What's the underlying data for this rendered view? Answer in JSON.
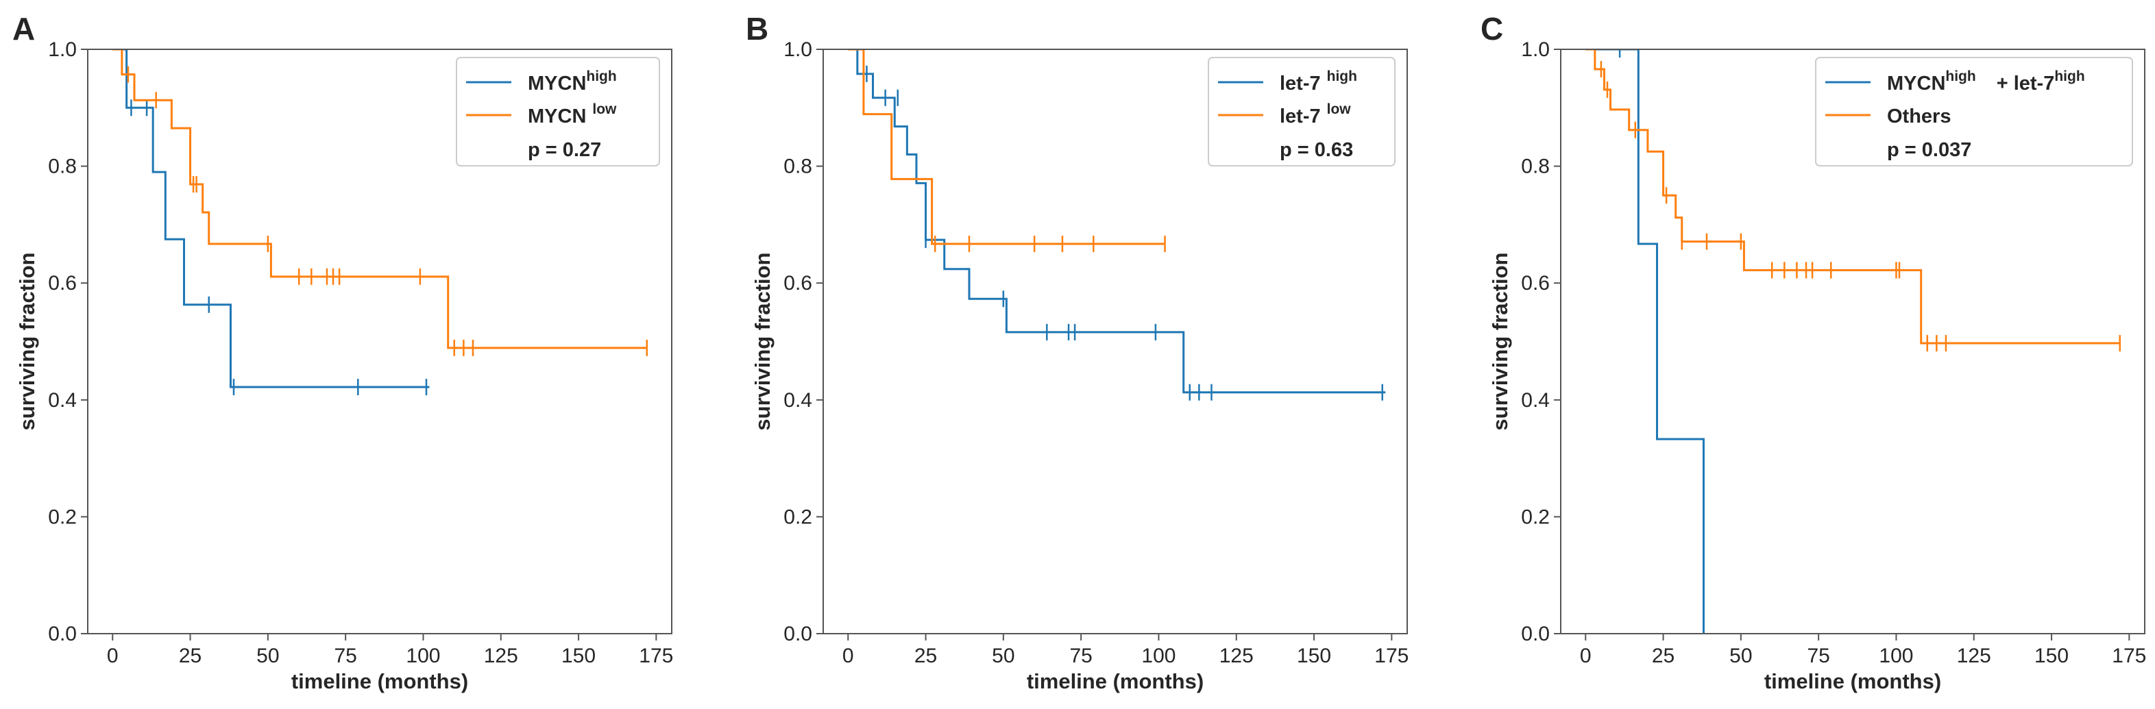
{
  "chart_data": [
    {
      "type": "line",
      "panel_label": "A",
      "xlabel": "timeline (months)",
      "ylabel": "surviving fraction",
      "xlim": [
        -8,
        180
      ],
      "ylim": [
        0,
        1
      ],
      "xticks": [
        0,
        25,
        50,
        75,
        100,
        125,
        150,
        175
      ],
      "yticks": [
        0.0,
        0.2,
        0.4,
        0.6,
        0.8,
        1.0
      ],
      "legend_position": "upper-right",
      "legend": {
        "entries": [
          {
            "base": "MYCN",
            "sup": "high",
            "after": "",
            "after_sup": "",
            "sup_gap": false
          },
          {
            "base": "MYCN",
            "sup": "low",
            "after": "",
            "after_sup": "",
            "sup_gap": true
          }
        ],
        "pvalue": "p = 0.27"
      },
      "series": [
        {
          "name": "MYCN high",
          "color": "#1f77b4",
          "steps": [
            [
              0,
              1.0
            ],
            [
              4.5,
              0.9
            ],
            [
              13,
              0.79
            ],
            [
              17,
              0.675
            ],
            [
              23,
              0.563
            ],
            [
              38,
              0.422
            ],
            [
              102,
              0.422
            ]
          ],
          "censored": [
            [
              6,
              0.9
            ],
            [
              11,
              0.9
            ],
            [
              31,
              0.563
            ],
            [
              39,
              0.422
            ],
            [
              79,
              0.422
            ],
            [
              101,
              0.422
            ]
          ]
        },
        {
          "name": "MYCN low",
          "color": "#ff7f0e",
          "steps": [
            [
              0,
              1.0
            ],
            [
              3,
              0.957
            ],
            [
              7,
              0.913
            ],
            [
              19,
              0.865
            ],
            [
              25,
              0.769
            ],
            [
              29,
              0.721
            ],
            [
              31,
              0.667
            ],
            [
              51,
              0.611
            ],
            [
              108,
              0.489
            ],
            [
              172,
              0.489
            ]
          ],
          "censored": [
            [
              5,
              0.957
            ],
            [
              14,
              0.913
            ],
            [
              26,
              0.769
            ],
            [
              27,
              0.769
            ],
            [
              50,
              0.667
            ],
            [
              60,
              0.611
            ],
            [
              64,
              0.611
            ],
            [
              69,
              0.611
            ],
            [
              71,
              0.611
            ],
            [
              73,
              0.611
            ],
            [
              99,
              0.611
            ],
            [
              110,
              0.489
            ],
            [
              113,
              0.489
            ],
            [
              116,
              0.489
            ],
            [
              172,
              0.489
            ]
          ]
        }
      ]
    },
    {
      "type": "line",
      "panel_label": "B",
      "xlabel": "timeline (months)",
      "ylabel": "surviving fraction",
      "xlim": [
        -8,
        180
      ],
      "ylim": [
        0,
        1
      ],
      "xticks": [
        0,
        25,
        50,
        75,
        100,
        125,
        150,
        175
      ],
      "yticks": [
        0.0,
        0.2,
        0.4,
        0.6,
        0.8,
        1.0
      ],
      "legend_position": "upper-right",
      "legend": {
        "entries": [
          {
            "base": "let-7",
            "sup": "high",
            "after": "",
            "after_sup": "",
            "sup_gap": true
          },
          {
            "base": "let-7",
            "sup": "low",
            "after": "",
            "after_sup": "",
            "sup_gap": true
          }
        ],
        "pvalue": "p = 0.63"
      },
      "series": [
        {
          "name": "let-7 high",
          "color": "#1f77b4",
          "steps": [
            [
              0,
              1.0
            ],
            [
              3,
              0.958
            ],
            [
              8,
              0.917
            ],
            [
              15,
              0.868
            ],
            [
              19,
              0.82
            ],
            [
              22,
              0.771
            ],
            [
              25,
              0.674
            ],
            [
              31,
              0.624
            ],
            [
              39,
              0.573
            ],
            [
              51,
              0.516
            ],
            [
              108,
              0.413
            ],
            [
              173,
              0.413
            ]
          ],
          "censored": [
            [
              6,
              0.958
            ],
            [
              12,
              0.917
            ],
            [
              16,
              0.917
            ],
            [
              25,
              0.674
            ],
            [
              50,
              0.573
            ],
            [
              64,
              0.516
            ],
            [
              71,
              0.516
            ],
            [
              73,
              0.516
            ],
            [
              99,
              0.516
            ],
            [
              110,
              0.413
            ],
            [
              113,
              0.413
            ],
            [
              117,
              0.413
            ],
            [
              172,
              0.413
            ]
          ]
        },
        {
          "name": "let-7 low",
          "color": "#ff7f0e",
          "steps": [
            [
              0,
              1.0
            ],
            [
              5,
              0.889
            ],
            [
              14,
              0.778
            ],
            [
              27,
              0.667
            ],
            [
              102,
              0.667
            ]
          ],
          "censored": [
            [
              5,
              0.958
            ],
            [
              28,
              0.667
            ],
            [
              39,
              0.667
            ],
            [
              60,
              0.667
            ],
            [
              69,
              0.667
            ],
            [
              79,
              0.667
            ],
            [
              102,
              0.667
            ]
          ]
        }
      ]
    },
    {
      "type": "line",
      "panel_label": "C",
      "xlabel": "timeline (months)",
      "ylabel": "surviving fraction",
      "xlim": [
        -8,
        180
      ],
      "ylim": [
        0,
        1
      ],
      "xticks": [
        0,
        25,
        50,
        75,
        100,
        125,
        150,
        175
      ],
      "yticks": [
        0.0,
        0.2,
        0.4,
        0.6,
        0.8,
        1.0
      ],
      "legend_position": "upper-right",
      "legend": {
        "entries": [
          {
            "base": "MYCN",
            "sup": "high",
            "after": "+ let-7",
            "after_sup": "high",
            "sup_gap": false
          },
          {
            "base": "Others",
            "sup": "",
            "after": "",
            "after_sup": "",
            "sup_gap": false
          }
        ],
        "pvalue": "p = 0.037"
      },
      "series": [
        {
          "name": "MYCN high + let-7 high",
          "color": "#1f77b4",
          "steps": [
            [
              0,
              1.0
            ],
            [
              17,
              0.667
            ],
            [
              23,
              0.333
            ],
            [
              38,
              0.0
            ]
          ],
          "censored": [
            [
              11,
              1.0
            ]
          ]
        },
        {
          "name": "Others",
          "color": "#ff7f0e",
          "steps": [
            [
              0,
              1.0
            ],
            [
              3,
              0.966
            ],
            [
              6,
              0.931
            ],
            [
              8,
              0.897
            ],
            [
              14,
              0.862
            ],
            [
              20,
              0.825
            ],
            [
              25,
              0.75
            ],
            [
              29,
              0.712
            ],
            [
              31,
              0.671
            ],
            [
              51,
              0.622
            ],
            [
              108,
              0.497
            ],
            [
              172,
              0.497
            ]
          ],
          "censored": [
            [
              5,
              0.966
            ],
            [
              7,
              0.931
            ],
            [
              16,
              0.862
            ],
            [
              26,
              0.75
            ],
            [
              31,
              0.671
            ],
            [
              39,
              0.671
            ],
            [
              50,
              0.671
            ],
            [
              60,
              0.622
            ],
            [
              64,
              0.622
            ],
            [
              68,
              0.622
            ],
            [
              71,
              0.622
            ],
            [
              73,
              0.622
            ],
            [
              79,
              0.622
            ],
            [
              100,
              0.622
            ],
            [
              101,
              0.622
            ],
            [
              110,
              0.497
            ],
            [
              113,
              0.497
            ],
            [
              116,
              0.497
            ],
            [
              172,
              0.497
            ]
          ]
        }
      ]
    }
  ]
}
